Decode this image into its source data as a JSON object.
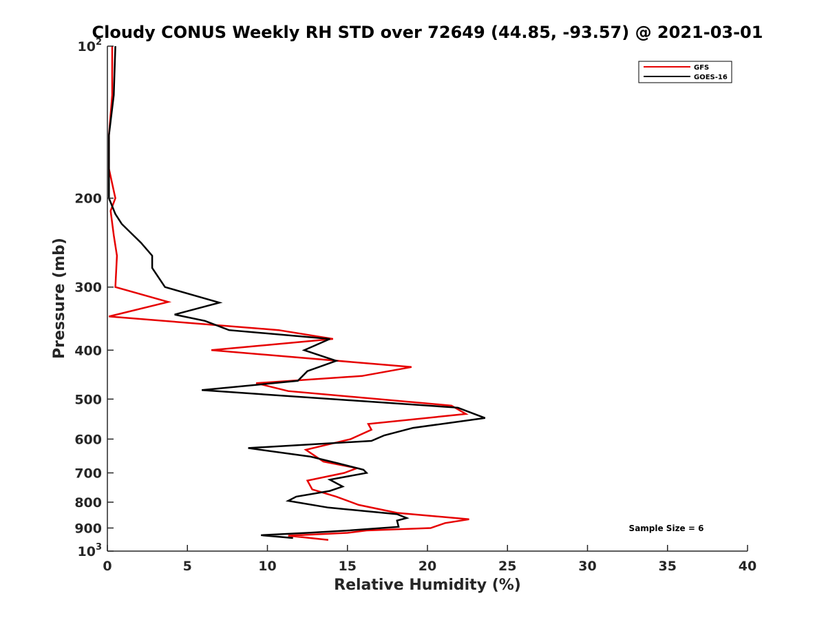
{
  "chart_data": {
    "type": "line",
    "title": "Cloudy CONUS Weekly RH STD over 72649 (44.85, -93.57) @ 2021-03-01",
    "xlabel": "Relative Humidity (%)",
    "ylabel": "Pressure (mb)",
    "xlim": [
      0,
      40
    ],
    "ylim": [
      100,
      1000
    ],
    "yscale": "log",
    "y_reversed": true,
    "grid": false,
    "legend_position": "top-right",
    "x_ticks": [
      "0",
      "5",
      "10",
      "15",
      "20",
      "25",
      "30",
      "35",
      "40"
    ],
    "y_ticks": [
      {
        "value": 100,
        "base": "10",
        "exp": "2"
      },
      {
        "value": 200,
        "label": "200"
      },
      {
        "value": 300,
        "label": "300"
      },
      {
        "value": 400,
        "label": "400"
      },
      {
        "value": 500,
        "label": "500"
      },
      {
        "value": 600,
        "label": "600"
      },
      {
        "value": 700,
        "label": "700"
      },
      {
        "value": 800,
        "label": "800"
      },
      {
        "value": 900,
        "label": "900"
      },
      {
        "value": 1000,
        "base": "10",
        "exp": "3"
      }
    ],
    "annotation": "Sample Size = 6",
    "series": [
      {
        "name": "GFS",
        "color": "#e60000",
        "points": [
          [
            0.3,
            100
          ],
          [
            0.3,
            125
          ],
          [
            0.1,
            150
          ],
          [
            0.1,
            175
          ],
          [
            0.5,
            200
          ],
          [
            0.2,
            212
          ],
          [
            0.4,
            237
          ],
          [
            0.6,
            260
          ],
          [
            0.5,
            300
          ],
          [
            3.8,
            321
          ],
          [
            0.1,
            343
          ],
          [
            10.7,
            365
          ],
          [
            14.1,
            380
          ],
          [
            6.5,
            400
          ],
          [
            19.0,
            432
          ],
          [
            15.9,
            450
          ],
          [
            9.3,
            465
          ],
          [
            11.3,
            482
          ],
          [
            21.5,
            515
          ],
          [
            22.4,
            535
          ],
          [
            16.3,
            560
          ],
          [
            16.5,
            575
          ],
          [
            15.2,
            600
          ],
          [
            12.4,
            630
          ],
          [
            13.5,
            665
          ],
          [
            15.6,
            685
          ],
          [
            14.8,
            700
          ],
          [
            12.5,
            725
          ],
          [
            12.8,
            755
          ],
          [
            14.3,
            780
          ],
          [
            15.7,
            810
          ],
          [
            18.1,
            840
          ],
          [
            22.6,
            865
          ],
          [
            21.1,
            880
          ],
          [
            20.2,
            900
          ],
          [
            16.2,
            910
          ],
          [
            15.0,
            920
          ],
          [
            11.3,
            932
          ],
          [
            13.8,
            950
          ]
        ]
      },
      {
        "name": "GOES-16",
        "color": "#000000",
        "points": [
          [
            0.5,
            100
          ],
          [
            0.4,
            125
          ],
          [
            0.1,
            150
          ],
          [
            0.1,
            175
          ],
          [
            0.1,
            200
          ],
          [
            0.5,
            215
          ],
          [
            0.9,
            225
          ],
          [
            2.1,
            245
          ],
          [
            2.8,
            260
          ],
          [
            2.8,
            275
          ],
          [
            3.6,
            300
          ],
          [
            7.0,
            322
          ],
          [
            4.2,
            340
          ],
          [
            6.1,
            350
          ],
          [
            7.6,
            365
          ],
          [
            13.9,
            380
          ],
          [
            12.3,
            400
          ],
          [
            14.3,
            420
          ],
          [
            12.5,
            440
          ],
          [
            11.9,
            460
          ],
          [
            5.9,
            480
          ],
          [
            21.9,
            520
          ],
          [
            23.6,
            545
          ],
          [
            19.1,
            570
          ],
          [
            17.3,
            590
          ],
          [
            16.5,
            605
          ],
          [
            8.8,
            625
          ],
          [
            12.7,
            650
          ],
          [
            14.4,
            670
          ],
          [
            16.0,
            690
          ],
          [
            16.2,
            700
          ],
          [
            13.9,
            722
          ],
          [
            14.7,
            745
          ],
          [
            13.9,
            760
          ],
          [
            11.8,
            780
          ],
          [
            11.3,
            795
          ],
          [
            13.8,
            820
          ],
          [
            18.1,
            845
          ],
          [
            18.7,
            860
          ],
          [
            18.1,
            870
          ],
          [
            18.2,
            895
          ],
          [
            15.1,
            910
          ],
          [
            12.5,
            920
          ],
          [
            9.6,
            930
          ],
          [
            11.6,
            942
          ]
        ]
      }
    ]
  }
}
